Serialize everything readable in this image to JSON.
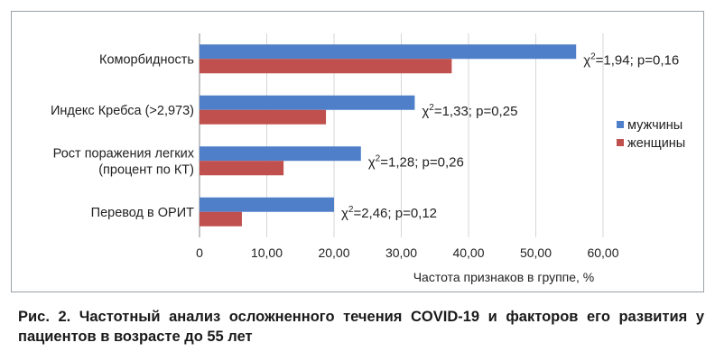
{
  "chart_data": {
    "type": "bar",
    "orientation": "horizontal",
    "categories": [
      [
        "Коморбидность"
      ],
      [
        "Индекс Кребса (>2,973)"
      ],
      [
        "Рост поражения легких",
        "(процент по КТ)"
      ],
      [
        "Перевод в ОРИТ"
      ]
    ],
    "series": [
      {
        "name": "мужчины",
        "values": [
          56.0,
          32.0,
          24.0,
          20.0
        ],
        "color": "#4f7fc8"
      },
      {
        "name": "женщины",
        "values": [
          37.5,
          18.8,
          12.5,
          6.3
        ],
        "color": "#c0504d"
      }
    ],
    "annotations": [
      {
        "chi_base": "χ",
        "chi_sup": "2",
        "rest": "=1,94; p=0,16"
      },
      {
        "chi_base": "χ",
        "chi_sup": "2",
        "rest": "=1,33; p=0,25"
      },
      {
        "chi_base": "χ",
        "chi_sup": "2",
        "rest": "=1,28; p=0,26"
      },
      {
        "chi_base": "χ",
        "chi_sup": "2",
        "rest": "=2,46; p=0,12"
      }
    ],
    "xlim": [
      0,
      60
    ],
    "xticks": [
      "0",
      "10,00",
      "20,00",
      "30,00",
      "40,00",
      "50,00",
      "60,00"
    ],
    "xlabel": "Частота признаков в группе, %",
    "grid": "vertical",
    "legend_position": "right"
  },
  "caption": "Рис. 2. Частотный анализ осложненного течения COVID-19 и факторов его развития у пациентов в возрасте до 55 лет"
}
